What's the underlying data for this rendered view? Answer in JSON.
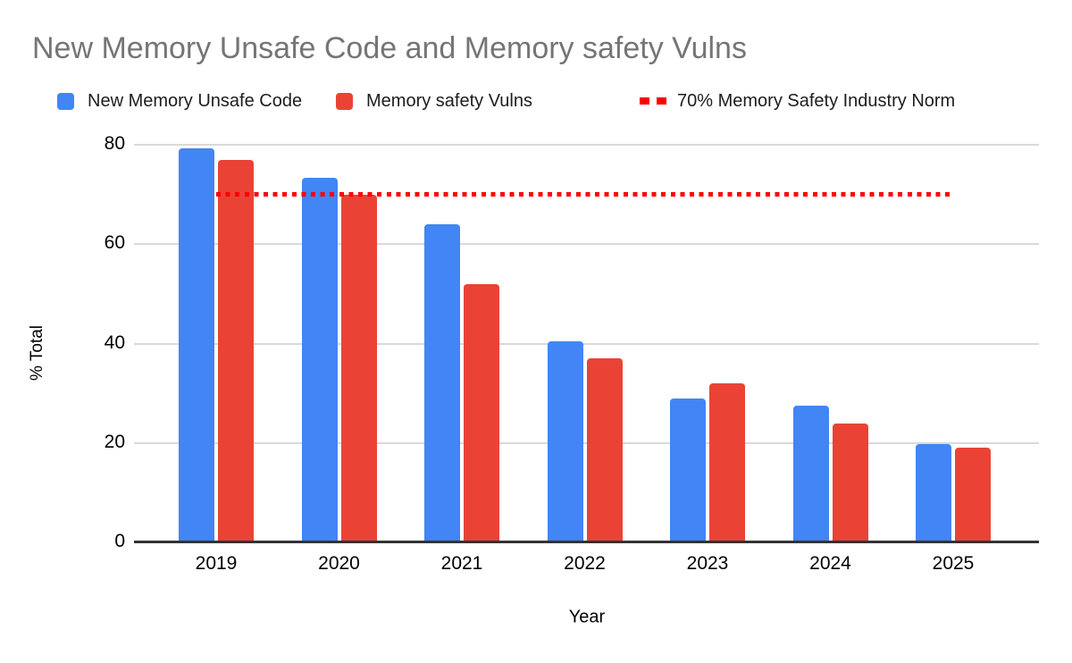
{
  "page": {
    "background": "#ffffff"
  },
  "chart_data": {
    "type": "bar",
    "title": "New Memory Unsafe Code and Memory safety Vulns",
    "title_color": "#757575",
    "xlabel": "Year",
    "ylabel": "% Total",
    "categories": [
      "2019",
      "2020",
      "2021",
      "2022",
      "2023",
      "2024",
      "2025"
    ],
    "series": [
      {
        "name": "New Memory Unsafe Code",
        "color": "#4285F4",
        "values": [
          79.3,
          73.3,
          64,
          40.5,
          29,
          27.5,
          19.8
        ]
      },
      {
        "name": "Memory safety Vulns",
        "color": "#EA4335",
        "values": [
          77,
          70,
          52,
          37,
          32,
          24,
          19
        ]
      }
    ],
    "reference_line": {
      "name": "70% Memory Safety Industry Norm",
      "value": 70,
      "color": "#FF0000",
      "style": "dotted"
    },
    "yticks": [
      0,
      20,
      40,
      60,
      80
    ],
    "ylim": [
      0,
      84
    ],
    "grid": true,
    "legend_position": "top",
    "colors": {
      "grid": "#d9d9d9",
      "axis": "#333333",
      "tick_text": "#000000"
    }
  }
}
